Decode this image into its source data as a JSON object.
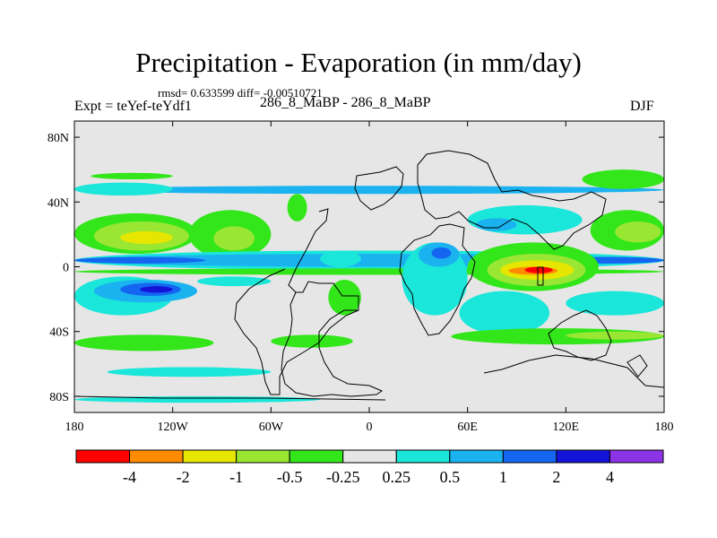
{
  "title": "Precipitation - Evaporation (in mm/day)",
  "stats_line": "rmsd= 0.633599 diff= -0.00510721",
  "expt_line": "Expt = teYef-teYdf1",
  "case_line": "286_8_MaBP - 286_8_MaBP",
  "season": "DJF",
  "chart_data": {
    "type": "heatmap",
    "title": "Precipitation - Evaporation (in mm/day)",
    "units": "mm/day",
    "xlim": [
      -180,
      180
    ],
    "ylim": [
      -90,
      90
    ],
    "x_ticks": [
      {
        "value": -180,
        "label": "180"
      },
      {
        "value": -120,
        "label": "120W"
      },
      {
        "value": -60,
        "label": "60W"
      },
      {
        "value": 0,
        "label": "0"
      },
      {
        "value": 60,
        "label": "60E"
      },
      {
        "value": 120,
        "label": "120E"
      },
      {
        "value": 180,
        "label": "180"
      }
    ],
    "y_ticks": [
      {
        "value": 80,
        "label": "80N"
      },
      {
        "value": 40,
        "label": "40N"
      },
      {
        "value": 0,
        "label": "0"
      },
      {
        "value": -40,
        "label": "40S"
      },
      {
        "value": -80,
        "label": "80S"
      }
    ],
    "colorbar": {
      "labels": [
        "-4",
        "-2",
        "-1",
        "-0.5",
        "-0.25",
        "0.25",
        "0.5",
        "1",
        "2",
        "4"
      ],
      "colors": [
        "#ff0000",
        "#ff8c00",
        "#e6e600",
        "#99e633",
        "#33e61a",
        "#e6e6e6",
        "#1ae6d9",
        "#1ab3f0",
        "#1466f0",
        "#1414d9",
        "#8c33e6"
      ]
    },
    "regions": [
      {
        "level": "-0.25",
        "color": "#33e61a",
        "x": [
          -180,
          -105
        ],
        "y": [
          8,
          33
        ]
      },
      {
        "level": "-0.5",
        "color": "#99e633",
        "x": [
          -168,
          -110
        ],
        "y": [
          10,
          28
        ]
      },
      {
        "level": "-1",
        "color": "#e6e600",
        "x": [
          -152,
          -120
        ],
        "y": [
          14,
          22
        ]
      },
      {
        "level": "-0.25",
        "color": "#33e61a",
        "x": [
          -110,
          -60
        ],
        "y": [
          5,
          35
        ]
      },
      {
        "level": "-0.5",
        "color": "#99e633",
        "x": [
          -95,
          -70
        ],
        "y": [
          10,
          25
        ]
      },
      {
        "level": "-0.25",
        "color": "#33e61a",
        "x": [
          -50,
          -38
        ],
        "y": [
          28,
          45
        ]
      },
      {
        "level": "0.5",
        "color": "#1ae6d9",
        "x": [
          -180,
          180
        ],
        "y": [
          -2,
          10
        ]
      },
      {
        "level": "1",
        "color": "#1ab3f0",
        "x": [
          -180,
          180
        ],
        "y": [
          0,
          8
        ]
      },
      {
        "level": "2",
        "color": "#1466f0",
        "x": [
          -180,
          -100
        ],
        "y": [
          2,
          6
        ]
      },
      {
        "level": "2",
        "color": "#1466f0",
        "x": [
          120,
          180
        ],
        "y": [
          2,
          6
        ]
      },
      {
        "level": "-0.25",
        "color": "#33e61a",
        "x": [
          -180,
          180
        ],
        "y": [
          -5,
          -1
        ]
      },
      {
        "level": "0.5",
        "color": "#1ae6d9",
        "x": [
          -180,
          -120
        ],
        "y": [
          -30,
          -6
        ]
      },
      {
        "level": "1",
        "color": "#1ab3f0",
        "x": [
          -168,
          -105
        ],
        "y": [
          -22,
          -8
        ]
      },
      {
        "level": "2",
        "color": "#1466f0",
        "x": [
          -152,
          -115
        ],
        "y": [
          -18,
          -10
        ]
      },
      {
        "level": "4",
        "color": "#1414d9",
        "x": [
          -140,
          -120
        ],
        "y": [
          -16,
          -12
        ]
      },
      {
        "level": "0.5",
        "color": "#1ae6d9",
        "x": [
          -105,
          -60
        ],
        "y": [
          -12,
          -6
        ]
      },
      {
        "level": "-0.25",
        "color": "#33e61a",
        "x": [
          -25,
          -5
        ],
        "y": [
          -30,
          -8
        ]
      },
      {
        "level": "0.5",
        "color": "#1ae6d9",
        "x": [
          -30,
          -5
        ],
        "y": [
          0,
          10
        ]
      },
      {
        "level": "0.5",
        "color": "#1ae6d9",
        "x": [
          20,
          60
        ],
        "y": [
          -30,
          15
        ]
      },
      {
        "level": "1",
        "color": "#1ab3f0",
        "x": [
          30,
          55
        ],
        "y": [
          0,
          15
        ]
      },
      {
        "level": "2",
        "color": "#1466f0",
        "x": [
          38,
          50
        ],
        "y": [
          5,
          12
        ]
      },
      {
        "level": "0.5",
        "color": "#1ae6d9",
        "x": [
          55,
          110
        ],
        "y": [
          -42,
          -15
        ]
      },
      {
        "level": "0.5",
        "color": "#1ae6d9",
        "x": [
          60,
          130
        ],
        "y": [
          20,
          38
        ]
      },
      {
        "level": "1",
        "color": "#1ab3f0",
        "x": [
          65,
          90
        ],
        "y": [
          22,
          30
        ]
      },
      {
        "level": "-0.25",
        "color": "#33e61a",
        "x": [
          60,
          140
        ],
        "y": [
          -15,
          15
        ]
      },
      {
        "level": "-0.5",
        "color": "#99e633",
        "x": [
          72,
          132
        ],
        "y": [
          -12,
          8
        ]
      },
      {
        "level": "-1",
        "color": "#e6e600",
        "x": [
          80,
          125
        ],
        "y": [
          -8,
          4
        ]
      },
      {
        "level": "-2",
        "color": "#ff8c00",
        "x": [
          85,
          115
        ],
        "y": [
          -5,
          0
        ]
      },
      {
        "level": "-4",
        "color": "#ff0000",
        "x": [
          95,
          112
        ],
        "y": [
          -4,
          0
        ]
      },
      {
        "level": "0.5",
        "color": "#1ae6d9",
        "x": [
          120,
          180
        ],
        "y": [
          -30,
          -15
        ]
      },
      {
        "level": "-0.25",
        "color": "#33e61a",
        "x": [
          135,
          180
        ],
        "y": [
          10,
          35
        ]
      },
      {
        "level": "-0.5",
        "color": "#99e633",
        "x": [
          150,
          178
        ],
        "y": [
          15,
          28
        ]
      },
      {
        "level": "-0.25",
        "color": "#33e61a",
        "x": [
          -180,
          -95
        ],
        "y": [
          -52,
          -42
        ]
      },
      {
        "level": "-0.25",
        "color": "#33e61a",
        "x": [
          -60,
          -10
        ],
        "y": [
          -50,
          -42
        ]
      },
      {
        "level": "-0.25",
        "color": "#33e61a",
        "x": [
          50,
          180
        ],
        "y": [
          -48,
          -38
        ]
      },
      {
        "level": "-0.5",
        "color": "#99e633",
        "x": [
          120,
          180
        ],
        "y": [
          -45,
          -40
        ]
      },
      {
        "level": "0.5",
        "color": "#1ae6d9",
        "x": [
          -160,
          -60
        ],
        "y": [
          -68,
          -62
        ]
      },
      {
        "level": "0.5",
        "color": "#1ae6d9",
        "x": [
          -180,
          -30
        ],
        "y": [
          -84,
          -80
        ]
      },
      {
        "level": "1",
        "color": "#1ab3f0",
        "x": [
          -180,
          180
        ],
        "y": [
          45,
          50
        ]
      },
      {
        "level": "0.5",
        "color": "#1ae6d9",
        "x": [
          -180,
          -120
        ],
        "y": [
          44,
          52
        ]
      },
      {
        "level": "-0.25",
        "color": "#33e61a",
        "x": [
          -170,
          -120
        ],
        "y": [
          54,
          58
        ]
      },
      {
        "level": "-0.25",
        "color": "#33e61a",
        "x": [
          130,
          180
        ],
        "y": [
          48,
          60
        ]
      }
    ]
  }
}
